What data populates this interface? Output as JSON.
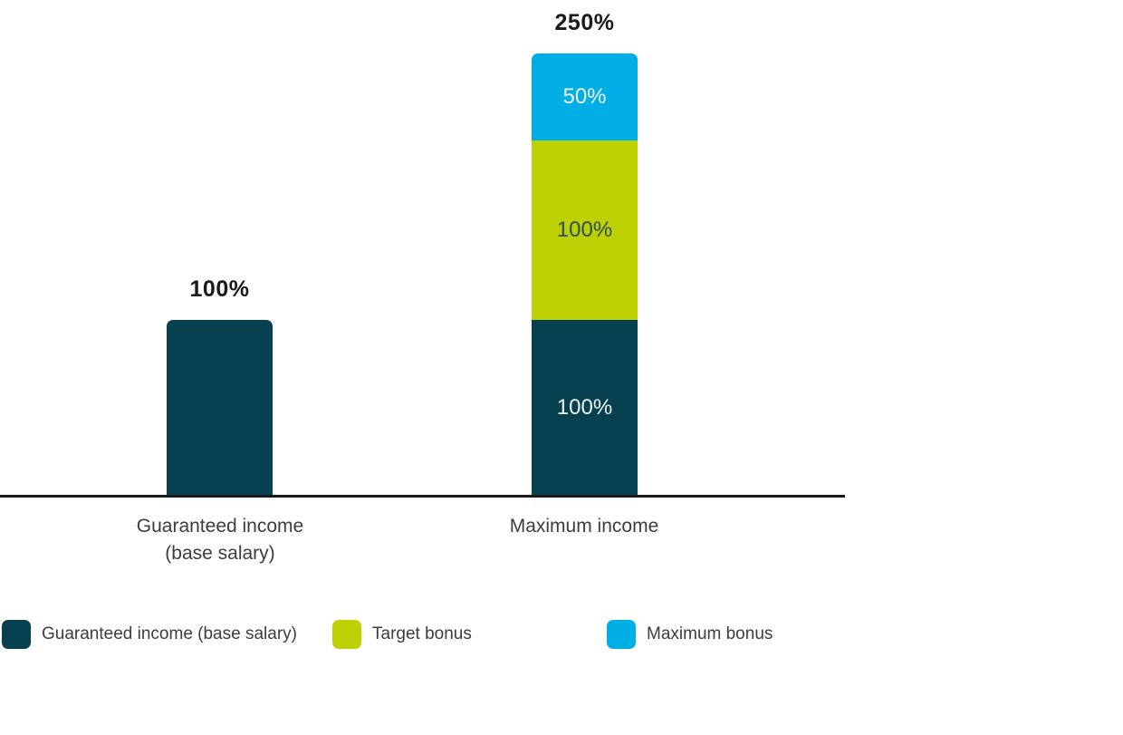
{
  "chart_data": {
    "type": "bar",
    "stacked": true,
    "title": "",
    "xlabel": "",
    "ylabel": "",
    "ylim": [
      0,
      250
    ],
    "grid": false,
    "legend_position": "bottom",
    "categories": [
      "Guaranteed income (base salary)",
      "Maximum income"
    ],
    "series": [
      {
        "name": "Guaranteed income (base salary)",
        "color": "#07404f",
        "values": [
          100,
          100
        ]
      },
      {
        "name": "Target bonus",
        "color": "#bdd004",
        "values": [
          0,
          100
        ]
      },
      {
        "name": "Maximum bonus",
        "color": "#00aee6",
        "values": [
          0,
          50
        ]
      }
    ],
    "totals": [
      100,
      250
    ]
  },
  "labels": {
    "bar1_total": "100%",
    "bar2_total": "250%",
    "bar2_base_segment": "100%",
    "bar2_target_segment": "100%",
    "bar2_max_segment": "50%",
    "xaxis_category1": "Guaranteed income\n(base salary)",
    "xaxis_category2": "Maximum income"
  },
  "legend": {
    "items": [
      {
        "label": "Guaranteed income (base salary)",
        "color": "#07404f"
      },
      {
        "label": "Target bonus",
        "color": "#bdd004"
      },
      {
        "label": "Maximum bonus",
        "color": "#00aee6"
      }
    ]
  },
  "colors": {
    "dark_teal": "#07404f",
    "lime_green": "#bdd004",
    "cyan_blue": "#00aee6",
    "total_label_text": "#1a1a1a",
    "axis_text": "#3c3c3b",
    "axis_line": "#1a1a1a",
    "in_bar_light_text": "#eef2f3",
    "in_bar_dark_text": "#2e4e59"
  }
}
